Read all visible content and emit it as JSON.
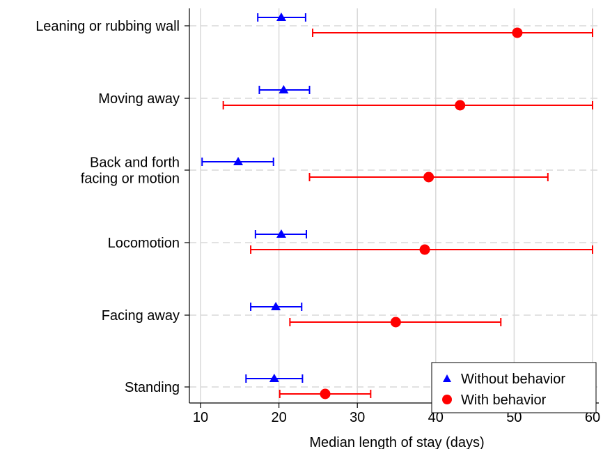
{
  "chart_data": {
    "type": "scatter",
    "orientation": "horizontal",
    "xlabel": "Median length of stay (days)",
    "ylabel": "",
    "xlim": [
      10,
      60
    ],
    "xticks": [
      10,
      20,
      30,
      40,
      50,
      60
    ],
    "grid": true,
    "legend_position": "bottom-right",
    "categories": [
      [
        "Leaning or rubbing wall"
      ],
      [
        "Moving away"
      ],
      [
        "Back and forth",
        "facing or motion"
      ],
      [
        "Locomotion"
      ],
      [
        "Facing away"
      ],
      [
        "Standing"
      ]
    ],
    "series": [
      {
        "name": "Without behavior",
        "marker": "triangle",
        "color": "#0000ff",
        "values": [
          20.3,
          20.6,
          14.8,
          20.3,
          19.6,
          19.4
        ],
        "lower": [
          17.3,
          17.5,
          10.2,
          17.0,
          16.4,
          15.8
        ],
        "upper": [
          23.4,
          23.9,
          19.3,
          23.5,
          22.9,
          23.0
        ]
      },
      {
        "name": "With behavior",
        "marker": "circle",
        "color": "#ff0000",
        "values": [
          50.4,
          43.1,
          39.1,
          38.6,
          34.9,
          25.9
        ],
        "lower": [
          24.3,
          12.9,
          23.9,
          16.4,
          21.4,
          20.1
        ],
        "upper": [
          60.0,
          60.0,
          54.3,
          60.0,
          48.3,
          31.7
        ]
      }
    ]
  }
}
